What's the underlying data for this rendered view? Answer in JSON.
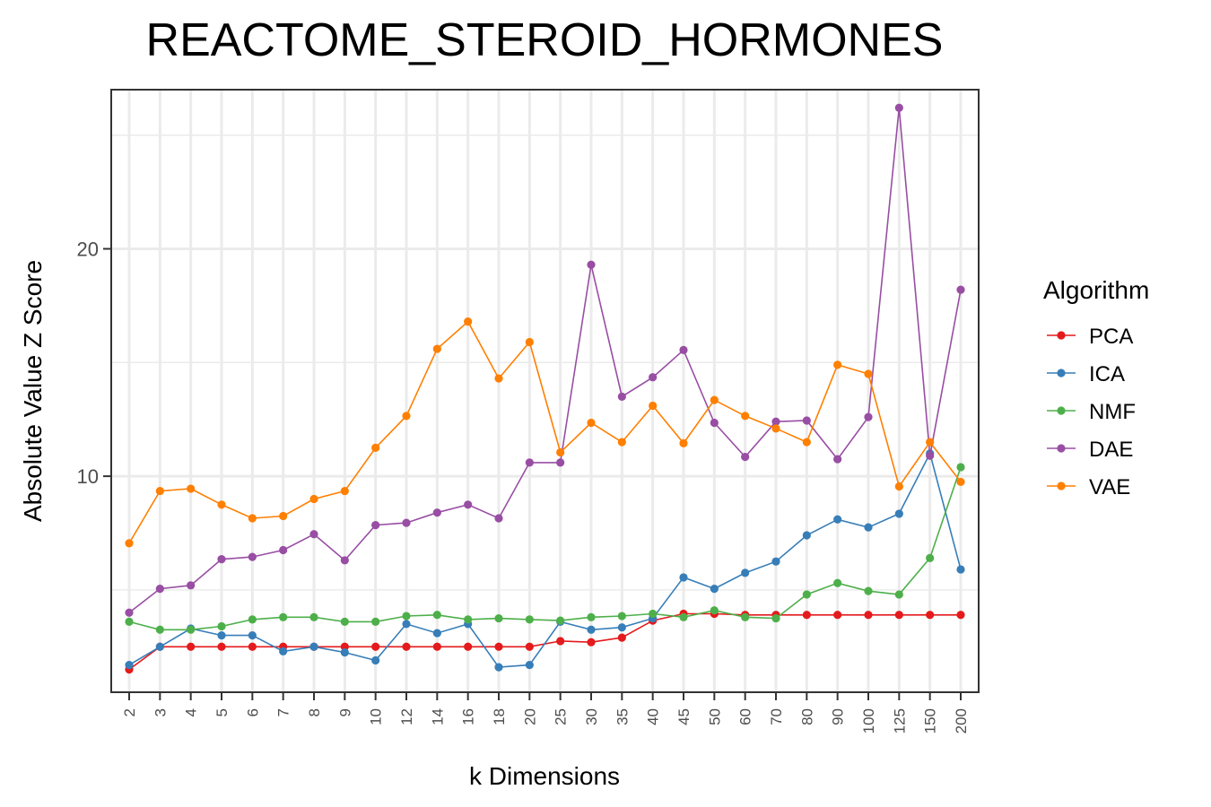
{
  "chart_data": {
    "type": "line",
    "title": "REACTOME_STEROID_HORMONES",
    "xlabel": "k Dimensions",
    "ylabel": "Absolute Value Z Score",
    "categories": [
      "2",
      "3",
      "4",
      "5",
      "6",
      "7",
      "8",
      "9",
      "10",
      "12",
      "14",
      "16",
      "18",
      "20",
      "25",
      "30",
      "35",
      "40",
      "45",
      "50",
      "60",
      "70",
      "80",
      "90",
      "100",
      "125",
      "150",
      "200"
    ],
    "ylim": [
      0.5,
      27
    ],
    "yticks": [
      10,
      20
    ],
    "grid": true,
    "legend": {
      "title": "Algorithm",
      "position": "right"
    },
    "series": [
      {
        "name": "PCA",
        "color": "#E41A1C",
        "values": [
          1.5,
          2.5,
          2.5,
          2.5,
          2.5,
          2.5,
          2.5,
          2.5,
          2.5,
          2.5,
          2.5,
          2.5,
          2.5,
          2.5,
          2.75,
          2.7,
          2.9,
          3.65,
          3.95,
          3.95,
          3.9,
          3.9,
          3.9,
          3.9,
          3.9,
          3.9,
          3.9,
          3.9
        ]
      },
      {
        "name": "ICA",
        "color": "#377EB8",
        "values": [
          1.7,
          2.5,
          3.3,
          3.0,
          3.0,
          2.3,
          2.5,
          2.25,
          1.9,
          3.5,
          3.1,
          3.5,
          1.6,
          1.7,
          3.6,
          3.25,
          3.35,
          3.75,
          5.55,
          5.05,
          5.75,
          6.25,
          7.4,
          8.1,
          7.75,
          8.35,
          11.0,
          5.9
        ]
      },
      {
        "name": "NMF",
        "color": "#4DAF4A",
        "values": [
          3.6,
          3.25,
          3.25,
          3.4,
          3.7,
          3.8,
          3.8,
          3.6,
          3.6,
          3.85,
          3.9,
          3.7,
          3.75,
          3.7,
          3.65,
          3.8,
          3.85,
          3.95,
          3.8,
          4.1,
          3.8,
          3.75,
          4.8,
          5.3,
          4.95,
          4.8,
          6.4,
          10.4
        ]
      },
      {
        "name": "DAE",
        "color": "#984EA3",
        "values": [
          4.0,
          5.05,
          5.2,
          6.35,
          6.45,
          6.75,
          7.45,
          6.3,
          7.85,
          7.95,
          8.4,
          8.75,
          8.15,
          10.6,
          10.6,
          19.3,
          13.5,
          14.35,
          15.55,
          12.35,
          10.85,
          12.4,
          12.45,
          10.75,
          12.6,
          26.2,
          10.9,
          18.2
        ]
      },
      {
        "name": "VAE",
        "color": "#FF7F00",
        "values": [
          7.05,
          9.35,
          9.45,
          8.75,
          8.15,
          8.25,
          9.0,
          9.35,
          11.25,
          12.65,
          15.6,
          16.8,
          14.3,
          15.9,
          11.05,
          12.35,
          11.5,
          13.1,
          11.45,
          13.35,
          12.65,
          12.1,
          11.5,
          14.9,
          14.5,
          9.55,
          11.5,
          9.75
        ]
      }
    ]
  }
}
